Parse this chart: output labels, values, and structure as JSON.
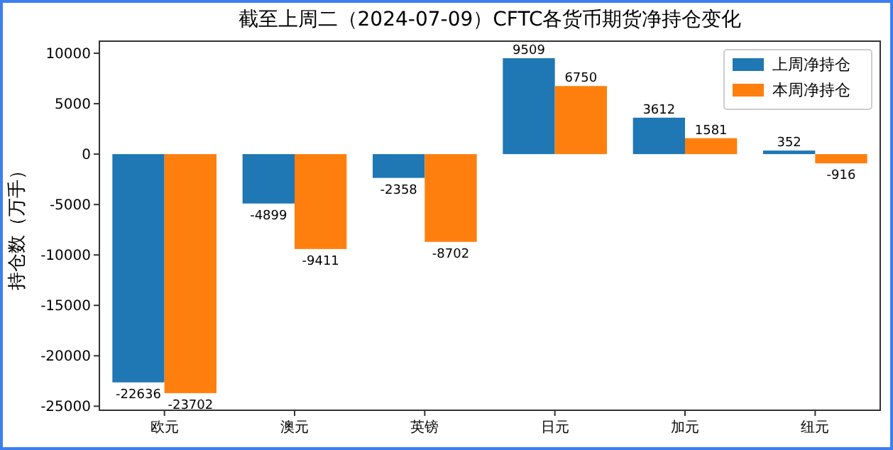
{
  "chart_data": {
    "type": "bar",
    "title": "截至上周二（2024-07-09）CFTC各货币期货净持仓变化",
    "ylabel": "持仓数（万手）",
    "categories": [
      "欧元",
      "澳元",
      "英镑",
      "日元",
      "加元",
      "纽元"
    ],
    "series": [
      {
        "name": "上周净持仓",
        "color": "#1f77b4",
        "values": [
          -22636,
          -4899,
          -2358,
          9509,
          3612,
          352
        ]
      },
      {
        "name": "本周净持仓",
        "color": "#ff7f0e",
        "values": [
          -23702,
          -9411,
          -8702,
          6750,
          1581,
          -916
        ]
      }
    ],
    "ylim": [
      -25400,
      11200
    ],
    "yticks": [
      -25000,
      -20000,
      -15000,
      -10000,
      -5000,
      0,
      5000,
      10000
    ],
    "data_labels": true,
    "legend": "top right",
    "grid": false
  }
}
